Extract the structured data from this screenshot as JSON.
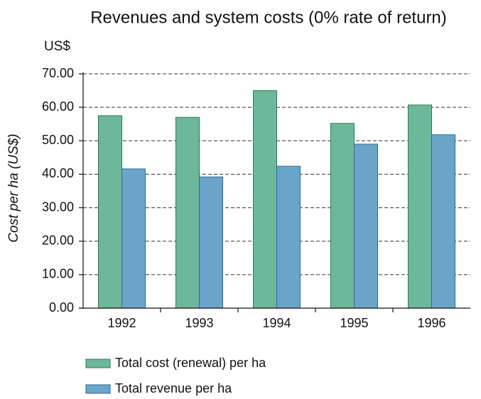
{
  "chart_data": {
    "type": "bar",
    "title": "Revenues and system costs (0% rate of return)",
    "unit_label": "US$",
    "y_label": "Cost per ha (US$)",
    "categories": [
      "1992",
      "1993",
      "1994",
      "1995",
      "1996"
    ],
    "series": [
      {
        "name": "Total cost (renewal) per ha",
        "color": "#6db89a",
        "stroke": "#2a7a55",
        "values": [
          57.5,
          57,
          65,
          55.2,
          60.7
        ]
      },
      {
        "name": "Total revenue per ha",
        "color": "#6aa5c9",
        "stroke": "#2a6b90",
        "values": [
          41.6,
          39.2,
          42.4,
          49,
          51.8
        ]
      }
    ],
    "ylim": [
      0,
      70
    ],
    "yticks": [
      {
        "value": 0,
        "label": "0.00"
      },
      {
        "value": 10,
        "label": "10.00"
      },
      {
        "value": 20,
        "label": "20.00"
      },
      {
        "value": 30,
        "label": "30.00"
      },
      {
        "value": 40,
        "label": "40.00"
      },
      {
        "value": 50,
        "label": "50.00"
      },
      {
        "value": 60,
        "label": "60.00"
      },
      {
        "value": 70,
        "label": "70.00"
      }
    ],
    "grid": true,
    "legend": "bottom"
  }
}
